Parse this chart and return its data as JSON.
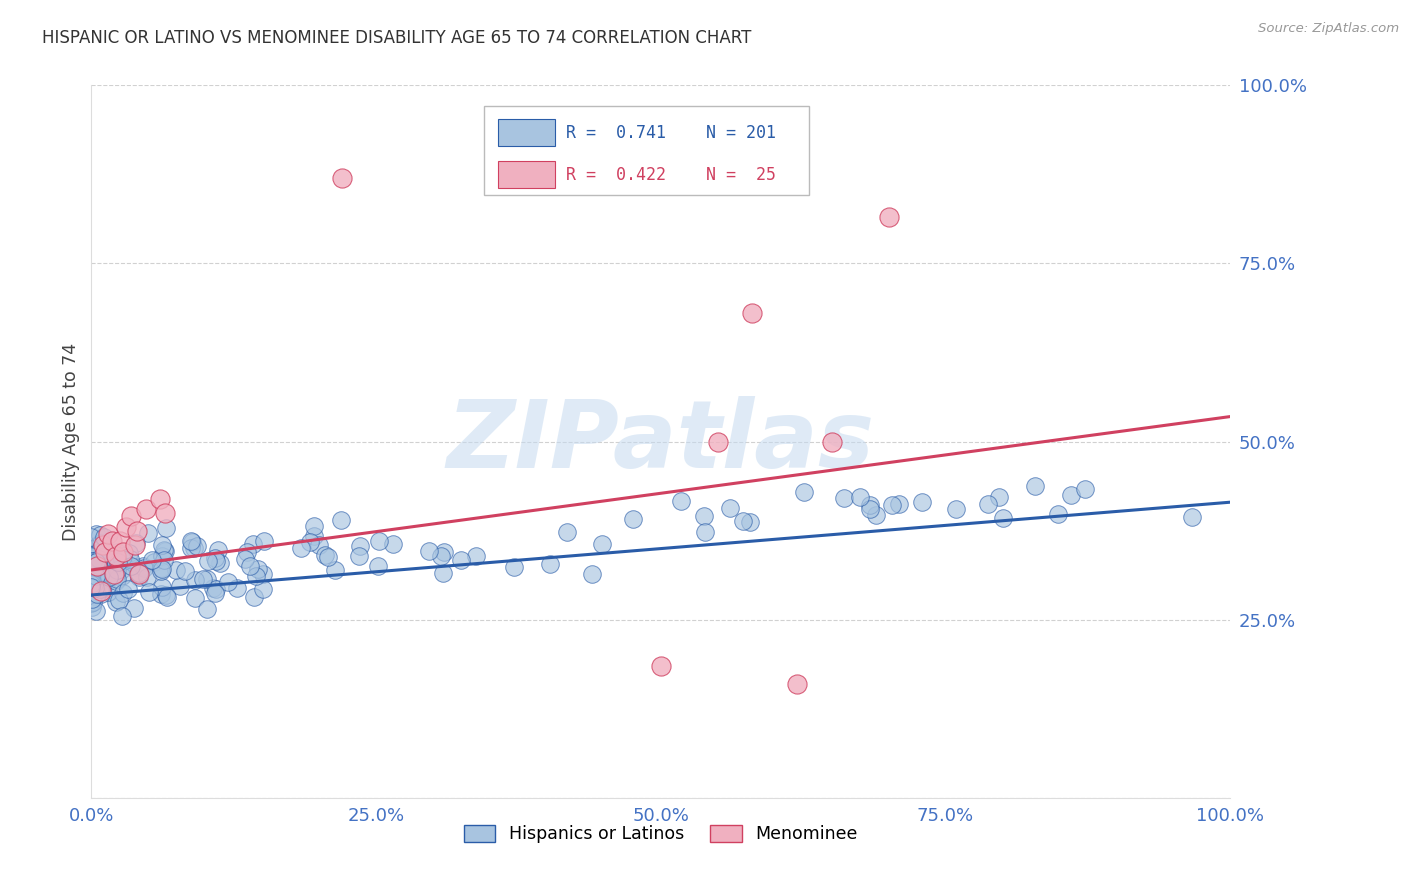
{
  "title": "HISPANIC OR LATINO VS MENOMINEE DISABILITY AGE 65 TO 74 CORRELATION CHART",
  "source": "Source: ZipAtlas.com",
  "ylabel": "Disability Age 65 to 74",
  "x_min": 0.0,
  "x_max": 1.0,
  "y_min": 0.0,
  "y_max": 1.0,
  "blue_R": 0.741,
  "blue_N": 201,
  "pink_R": 0.422,
  "pink_N": 25,
  "blue_color": "#a8c4e0",
  "blue_line_color": "#2a5ca8",
  "pink_color": "#f0b0c0",
  "pink_line_color": "#d04060",
  "background_color": "#ffffff",
  "grid_color": "#cccccc",
  "title_color": "#333333",
  "axis_tick_color": "#4472c4",
  "blue_line_x0": 0.0,
  "blue_line_y0": 0.285,
  "blue_line_x1": 1.0,
  "blue_line_y1": 0.415,
  "pink_line_x0": 0.0,
  "pink_line_y0": 0.32,
  "pink_line_x1": 1.0,
  "pink_line_y1": 0.535,
  "watermark_text": "ZIPatlas",
  "watermark_color": "#c5daf0",
  "legend_label_blue": "Hispanics or Latinos",
  "legend_label_pink": "Menominee"
}
